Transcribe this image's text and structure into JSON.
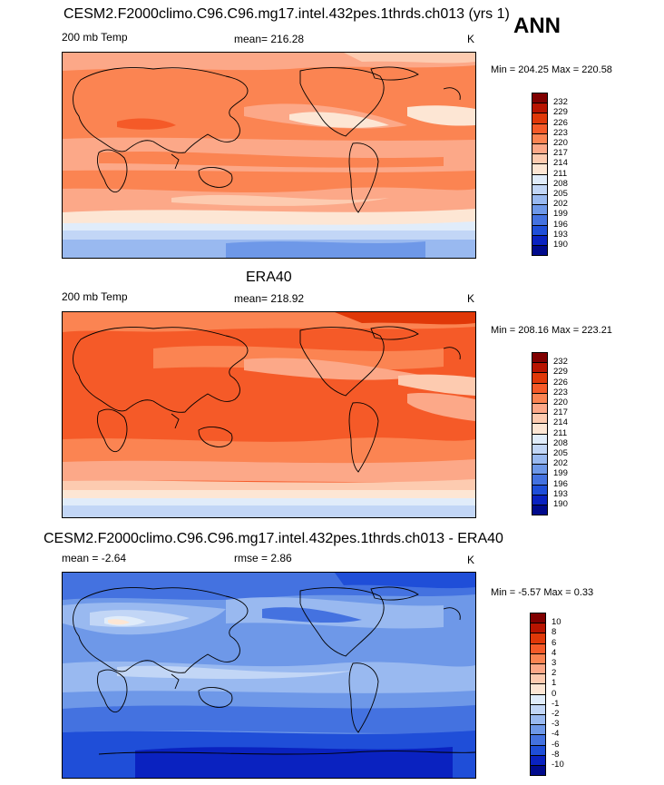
{
  "season": "ANN",
  "panels": [
    {
      "id": "model",
      "title": "CESM2.F2000climo.C96.C96.mg17.intel.432pes.1thrds.ch013 (yrs 1)",
      "left_label": "200 mb Temp",
      "center_label": "mean= 216.28",
      "units": "K",
      "minmax": "Min = 204.25 Max = 220.58",
      "colorbar_labels": [
        "232",
        "229",
        "226",
        "223",
        "220",
        "217",
        "214",
        "211",
        "208",
        "205",
        "202",
        "199",
        "196",
        "193",
        "190"
      ]
    },
    {
      "id": "obs",
      "title": "ERA40",
      "left_label": "200 mb Temp",
      "center_label": "mean= 218.92",
      "units": "K",
      "minmax": "Min = 208.16 Max = 223.21",
      "colorbar_labels": [
        "232",
        "229",
        "226",
        "223",
        "220",
        "217",
        "214",
        "211",
        "208",
        "205",
        "202",
        "199",
        "196",
        "193",
        "190"
      ]
    },
    {
      "id": "diff",
      "title": "CESM2.F2000climo.C96.C96.mg17.intel.432pes.1thrds.ch013 - ERA40",
      "left_label": "mean =  -2.64",
      "center_label": "rmse =   2.86",
      "units": "K",
      "minmax": "Min =  -5.57 Max =   0.33",
      "colorbar_labels": [
        "10",
        "8",
        "6",
        "4",
        "3",
        "2",
        "1",
        "0",
        "-1",
        "-2",
        "-3",
        "-4",
        "-6",
        "-8",
        "-10"
      ]
    }
  ],
  "colors": {
    "scale": [
      "#800000",
      "#b81400",
      "#e03808",
      "#f55a28",
      "#fb8452",
      "#fca888",
      "#fdcbb0",
      "#fde6d4",
      "#e0ecfa",
      "#c2d6f6",
      "#99b9f0",
      "#6e98e8",
      "#4472e0",
      "#1f4ed8",
      "#0a22c0",
      "#000a8c"
    ]
  },
  "chart_data": [
    {
      "type": "heatmap",
      "title": "CESM2.F2000climo.C96.C96.mg17.intel.432pes.1thrds.ch013 (yrs 1)",
      "variable": "200 mb Temp",
      "units": "K",
      "mean": 216.28,
      "min": 204.25,
      "max": 220.58,
      "levels": [
        190,
        193,
        196,
        199,
        202,
        205,
        208,
        211,
        214,
        217,
        220,
        223,
        226,
        229,
        232
      ]
    },
    {
      "type": "heatmap",
      "title": "ERA40",
      "variable": "200 mb Temp",
      "units": "K",
      "mean": 218.92,
      "min": 208.16,
      "max": 223.21,
      "levels": [
        190,
        193,
        196,
        199,
        202,
        205,
        208,
        211,
        214,
        217,
        220,
        223,
        226,
        229,
        232
      ]
    },
    {
      "type": "heatmap",
      "title": "CESM2.F2000climo.C96.C96.mg17.intel.432pes.1thrds.ch013 - ERA40",
      "units": "K",
      "mean": -2.64,
      "rmse": 2.86,
      "min": -5.57,
      "max": 0.33,
      "levels": [
        -10,
        -8,
        -6,
        -4,
        -3,
        -2,
        -1,
        0,
        1,
        2,
        3,
        4,
        6,
        8,
        10
      ]
    }
  ]
}
